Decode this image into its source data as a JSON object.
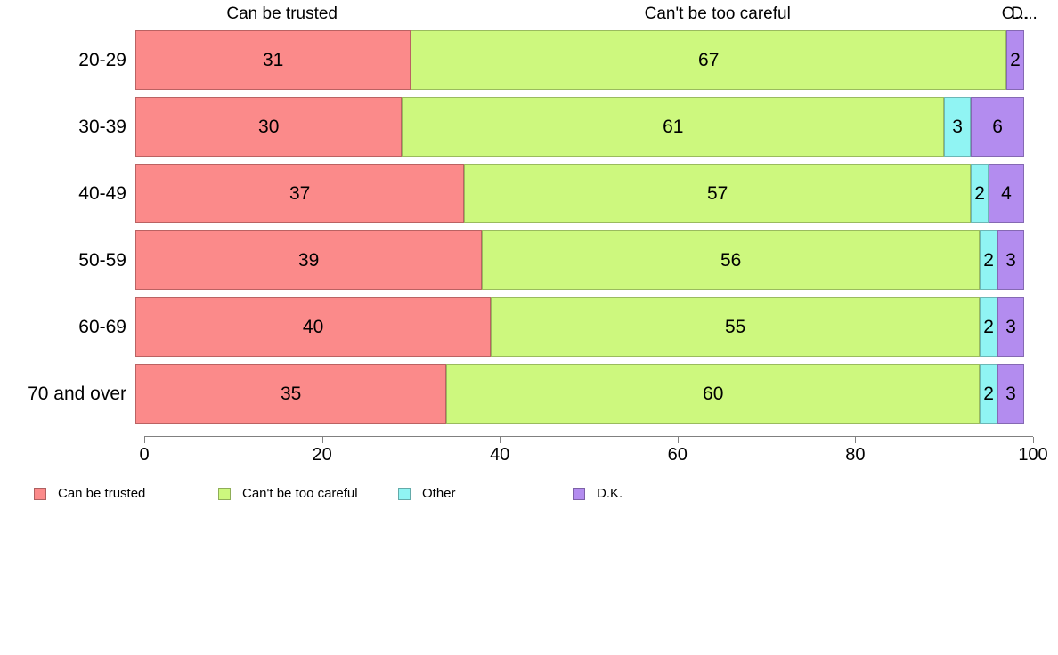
{
  "chart_data": {
    "type": "bar",
    "orientation": "horizontal",
    "stacked": true,
    "title": "",
    "xlabel": "",
    "ylabel": "",
    "xlim": [
      0,
      100
    ],
    "grid": false,
    "legend_position": "bottom",
    "categories": [
      "20-29",
      "30-39",
      "40-49",
      "50-59",
      "60-69",
      "70 and over"
    ],
    "series": [
      {
        "name": "Can be trusted",
        "color": "#FB8A8A",
        "border_color": "#BA6262",
        "values": [
          31,
          30,
          37,
          39,
          40,
          35
        ]
      },
      {
        "name": "Can't be too careful",
        "color": "#CDF87E",
        "border_color": "#9ABB5E",
        "values": [
          67,
          61,
          57,
          56,
          55,
          60
        ]
      },
      {
        "name": "Other",
        "color": "#90F4F3",
        "border_color": "#6CB7B6",
        "values": [
          0,
          3,
          2,
          2,
          2,
          2
        ]
      },
      {
        "name": "D.K.",
        "color": "#B38CEF",
        "border_color": "#8569B3",
        "values": [
          2,
          6,
          4,
          3,
          3,
          3
        ]
      }
    ],
    "column_headers": [
      "Can be trusted",
      "Can't be too careful",
      "O...",
      "D..."
    ],
    "x_ticks": [
      "0",
      "20",
      "40",
      "60",
      "80",
      "100"
    ],
    "legend": [
      "Can be trusted",
      "Can't be too careful",
      "Other",
      "D.K."
    ]
  }
}
